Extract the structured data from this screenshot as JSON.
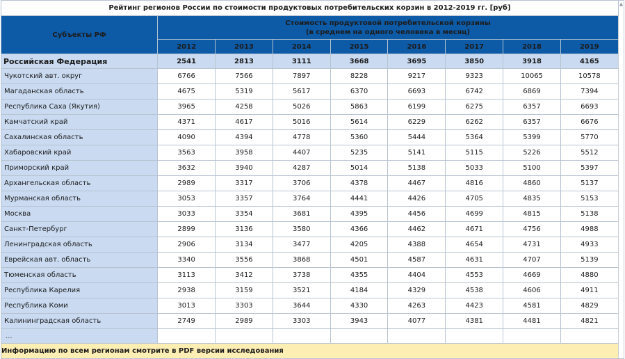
{
  "title": "Рейтинг регионов России по стоимости продуктовых потребительских корзин в 2012-2019 гг. [руб]",
  "header": {
    "subjects": "Субъекты РФ",
    "cost_line1": "Стоимость продуктовой потребительской корзины",
    "cost_line2": "(в среднем на одного человека в месяц)",
    "years": [
      "2012",
      "2013",
      "2014",
      "2015",
      "2016",
      "2017",
      "2018",
      "2019"
    ]
  },
  "federal": {
    "name": "Российская Федерация",
    "values": [
      "2541",
      "2813",
      "3111",
      "3668",
      "3695",
      "3850",
      "3918",
      "4165"
    ]
  },
  "rows": [
    {
      "name": "Чукотский авт. округ",
      "values": [
        "6766",
        "7566",
        "7897",
        "8228",
        "9217",
        "9323",
        "10065",
        "10578"
      ]
    },
    {
      "name": "Магаданская область",
      "values": [
        "4675",
        "5319",
        "5617",
        "6370",
        "6693",
        "6742",
        "6869",
        "7394"
      ]
    },
    {
      "name": "Республика Саха (Якутия)",
      "values": [
        "3965",
        "4258",
        "5026",
        "5863",
        "6199",
        "6275",
        "6357",
        "6693"
      ]
    },
    {
      "name": "Камчатский край",
      "values": [
        "4371",
        "4617",
        "5016",
        "5614",
        "6229",
        "6262",
        "6357",
        "6676"
      ]
    },
    {
      "name": "Сахалинская область",
      "values": [
        "4090",
        "4394",
        "4778",
        "5360",
        "5444",
        "5364",
        "5399",
        "5770"
      ]
    },
    {
      "name": "Хабаровский край",
      "values": [
        "3563",
        "3958",
        "4407",
        "5235",
        "5141",
        "5115",
        "5226",
        "5512"
      ]
    },
    {
      "name": "Приморский край",
      "values": [
        "3632",
        "3940",
        "4287",
        "5014",
        "5138",
        "5033",
        "5100",
        "5397"
      ]
    },
    {
      "name": "Архангельская область",
      "values": [
        "2989",
        "3317",
        "3706",
        "4378",
        "4467",
        "4816",
        "4860",
        "5137"
      ]
    },
    {
      "name": "Мурманская область",
      "values": [
        "3053",
        "3357",
        "3764",
        "4441",
        "4426",
        "4705",
        "4835",
        "5153"
      ]
    },
    {
      "name": "Москва",
      "values": [
        "3033",
        "3354",
        "3681",
        "4395",
        "4456",
        "4699",
        "4815",
        "5138"
      ]
    },
    {
      "name": "Санкт-Петербург",
      "values": [
        "2899",
        "3136",
        "3580",
        "4366",
        "4462",
        "4671",
        "4756",
        "4988"
      ]
    },
    {
      "name": "Ленинградская область",
      "values": [
        "2906",
        "3134",
        "3477",
        "4205",
        "4388",
        "4654",
        "4731",
        "4933"
      ]
    },
    {
      "name": "Еврейская авт. область",
      "values": [
        "3340",
        "3556",
        "3868",
        "4501",
        "4587",
        "4631",
        "4707",
        "5139"
      ]
    },
    {
      "name": "Тюменская область",
      "values": [
        "3113",
        "3412",
        "3738",
        "4355",
        "4404",
        "4553",
        "4669",
        "4880"
      ]
    },
    {
      "name": "Республика Карелия",
      "values": [
        "2938",
        "3159",
        "3521",
        "4184",
        "4329",
        "4538",
        "4606",
        "4911"
      ]
    },
    {
      "name": "Республика Коми",
      "values": [
        "3013",
        "3303",
        "3644",
        "4330",
        "4263",
        "4423",
        "4581",
        "4829"
      ]
    },
    {
      "name": "Калининградская область",
      "values": [
        "2749",
        "2989",
        "3303",
        "3943",
        "4077",
        "4381",
        "4481",
        "4821"
      ]
    }
  ],
  "ellipsis": "...",
  "footer": "Информацию по всем регионам смотрите в PDF версии исследования",
  "scrollbar": {
    "up_icon": "▲",
    "down_icon": "▼"
  }
}
